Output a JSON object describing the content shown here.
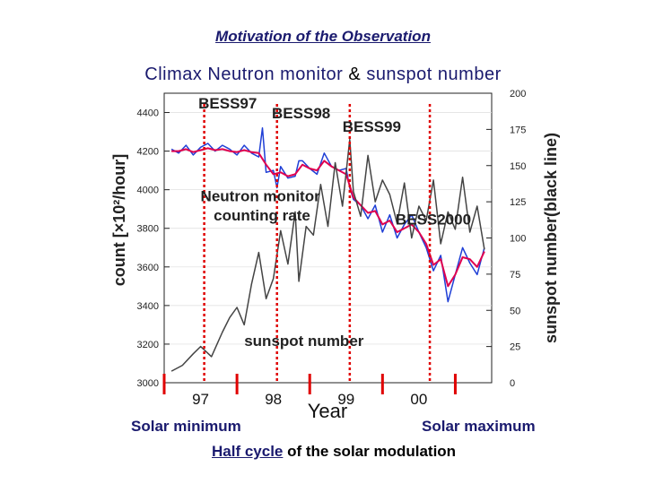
{
  "heading": "Motivation of the Observation",
  "subheading": {
    "part1": "Climax Neutron monitor",
    "amp": "&",
    "part2": "sunspot number"
  },
  "bottom": {
    "solar_min": "Solar minimum",
    "solar_max": "Solar maximum",
    "half_cycle_link": "Half cycle",
    "half_cycle_rest": " of the solar modulation"
  },
  "chart_data": {
    "type": "line",
    "xlabel": "Year",
    "ylabel_left": "count [×10²/hour]",
    "ylabel_right": "sunspot number(black line)",
    "xlim": [
      1996.5,
      2001.0
    ],
    "ylim_left": [
      3000,
      4500
    ],
    "ylim_right": [
      0,
      200
    ],
    "y_ticks_left": [
      3000,
      3200,
      3400,
      3600,
      3800,
      4000,
      4200,
      4400
    ],
    "y_ticks_right": [
      0,
      25,
      50,
      75,
      100,
      125,
      150,
      175,
      200
    ],
    "x_ticks": [
      {
        "x": 1997.0,
        "label": "97"
      },
      {
        "x": 1998.0,
        "label": "98"
      },
      {
        "x": 1999.0,
        "label": "99"
      },
      {
        "x": 2000.0,
        "label": "00"
      }
    ],
    "year_boundaries": [
      1996.5,
      1997.5,
      1998.5,
      1999.5,
      2000.5
    ],
    "annotations": [
      {
        "text": "Neutron monitor",
        "x": 1997.0,
        "y": 3940
      },
      {
        "text": "counting rate",
        "x": 1997.18,
        "y": 3840
      },
      {
        "text": "sunspot number",
        "x": 1997.6,
        "y": 3190
      }
    ],
    "flights": [
      {
        "label": "BESS97",
        "x": 1997.05,
        "label_x": 1996.97,
        "label_y": 4420
      },
      {
        "label": "BESS98",
        "x": 1998.05,
        "label_x": 1997.98,
        "label_y": 4370
      },
      {
        "label": "BESS99",
        "x": 1999.05,
        "label_x": 1998.95,
        "label_y": 4300
      },
      {
        "label": "BESS2000",
        "x": 2000.15,
        "label_x": 1999.68,
        "label_y": 3820
      }
    ],
    "series": [
      {
        "color": "#1f3fd6",
        "x": [
          1996.6,
          1996.7,
          1996.8,
          1996.9,
          1997.0,
          1997.1,
          1997.2,
          1997.3,
          1997.4,
          1997.5,
          1997.6,
          1997.7,
          1997.8,
          1997.85,
          1997.9,
          1998.0,
          1998.05,
          1998.1,
          1998.2,
          1998.3,
          1998.35,
          1998.4,
          1998.5,
          1998.6,
          1998.7,
          1998.8,
          1998.9,
          1999.0,
          1999.05,
          1999.1,
          1999.2,
          1999.3,
          1999.4,
          1999.5,
          1999.6,
          1999.7,
          1999.8,
          1999.9,
          2000.0,
          2000.1,
          2000.2,
          2000.3,
          2000.4,
          2000.5,
          2000.6,
          2000.7,
          2000.8,
          2000.9
        ],
        "y": [
          4210,
          4190,
          4230,
          4180,
          4220,
          4240,
          4200,
          4230,
          4210,
          4180,
          4230,
          4190,
          4170,
          4320,
          4090,
          4100,
          4010,
          4120,
          4060,
          4070,
          4150,
          4150,
          4110,
          4080,
          4190,
          4120,
          4100,
          4110,
          4010,
          3950,
          3920,
          3850,
          3920,
          3780,
          3870,
          3750,
          3820,
          3870,
          3780,
          3700,
          3580,
          3660,
          3420,
          3560,
          3700,
          3620,
          3560,
          3700
        ]
      },
      {
        "color": "#e0004f",
        "x": [
          1996.6,
          1996.7,
          1996.8,
          1996.9,
          1997.0,
          1997.1,
          1997.2,
          1997.3,
          1997.4,
          1997.5,
          1997.6,
          1997.7,
          1997.8,
          1997.9,
          1998.0,
          1998.1,
          1998.2,
          1998.3,
          1998.4,
          1998.5,
          1998.6,
          1998.7,
          1998.8,
          1998.9,
          1999.0,
          1999.1,
          1999.2,
          1999.3,
          1999.4,
          1999.5,
          1999.6,
          1999.7,
          1999.8,
          1999.9,
          2000.0,
          2000.1,
          2000.2,
          2000.3,
          2000.4,
          2000.5,
          2000.6,
          2000.7,
          2000.8,
          2000.9
        ],
        "y": [
          4200,
          4200,
          4210,
          4195,
          4205,
          4215,
          4205,
          4210,
          4200,
          4195,
          4205,
          4195,
          4190,
          4130,
          4080,
          4090,
          4070,
          4080,
          4130,
          4110,
          4100,
          4150,
          4120,
          4100,
          4080,
          3960,
          3920,
          3880,
          3890,
          3820,
          3840,
          3780,
          3800,
          3820,
          3780,
          3720,
          3610,
          3640,
          3500,
          3560,
          3650,
          3640,
          3600,
          3680
        ]
      },
      {
        "color": "#444444",
        "x": [
          1996.6,
          1996.75,
          1996.9,
          1997.0,
          1997.15,
          1997.3,
          1997.4,
          1997.5,
          1997.6,
          1997.7,
          1997.8,
          1997.9,
          1998.0,
          1998.1,
          1998.2,
          1998.3,
          1998.35,
          1998.45,
          1998.55,
          1998.65,
          1998.75,
          1998.85,
          1998.95,
          1999.05,
          1999.1,
          1999.2,
          1999.3,
          1999.4,
          1999.5,
          1999.6,
          1999.7,
          1999.8,
          1999.9,
          2000.0,
          2000.1,
          2000.2,
          2000.3,
          2000.4,
          2000.5,
          2000.6,
          2000.7,
          2000.8,
          2000.9
        ],
        "y": [
          8,
          12,
          20,
          25,
          18,
          35,
          45,
          52,
          40,
          68,
          90,
          58,
          72,
          105,
          82,
          118,
          70,
          108,
          102,
          137,
          108,
          152,
          122,
          168,
          132,
          115,
          157,
          125,
          140,
          130,
          110,
          138,
          100,
          122,
          112,
          140,
          96,
          118,
          106,
          142,
          104,
          122,
          92
        ]
      }
    ]
  }
}
